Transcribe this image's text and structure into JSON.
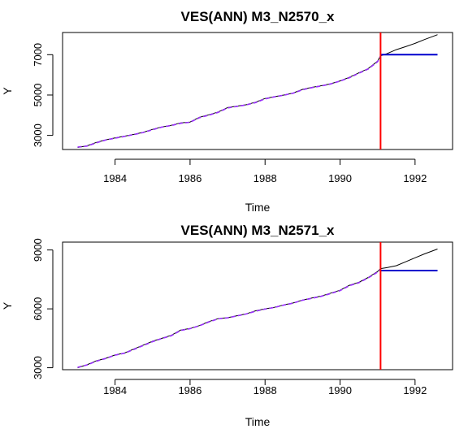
{
  "chart_data": [
    {
      "type": "line",
      "title": "VES(ANN) M3_N2570_x",
      "xlabel": "Time",
      "ylabel": "Y",
      "xlim": [
        1982.6,
        1993.0
      ],
      "ylim": [
        2300,
        8100
      ],
      "xticks": [
        1984,
        1986,
        1988,
        1990,
        1992
      ],
      "yticks": [
        3000,
        5000,
        7000
      ],
      "holdout_start": 1991.08,
      "colors": {
        "actual": "#000000",
        "fitted": "#9b30ff",
        "forecast": "#0000cd",
        "holdout_line": "#ff0000"
      },
      "series": [
        {
          "role": "actual",
          "x": [
            1983.0,
            1983.25,
            1983.5,
            1983.75,
            1984.0,
            1984.25,
            1984.5,
            1984.75,
            1985.0,
            1985.25,
            1985.5,
            1985.75,
            1986.0,
            1986.25,
            1986.5,
            1986.75,
            1987.0,
            1987.25,
            1987.5,
            1987.75,
            1988.0,
            1988.25,
            1988.5,
            1988.75,
            1989.0,
            1989.25,
            1989.5,
            1989.75,
            1990.0,
            1990.25,
            1990.5,
            1990.75,
            1991.0,
            1991.08,
            1991.25,
            1991.5,
            1991.75,
            1992.0,
            1992.25,
            1992.6
          ],
          "y": [
            2400,
            2480,
            2650,
            2780,
            2870,
            2960,
            3050,
            3150,
            3300,
            3420,
            3500,
            3620,
            3660,
            3900,
            4020,
            4160,
            4380,
            4450,
            4520,
            4650,
            4830,
            4920,
            5000,
            5100,
            5280,
            5380,
            5460,
            5560,
            5700,
            5880,
            6100,
            6310,
            6680,
            6950,
            7050,
            7250,
            7400,
            7560,
            7750,
            7990
          ]
        },
        {
          "role": "fitted",
          "x": [
            1983.0,
            1983.25,
            1983.5,
            1983.75,
            1984.0,
            1984.25,
            1984.5,
            1984.75,
            1985.0,
            1985.25,
            1985.5,
            1985.75,
            1986.0,
            1986.25,
            1986.5,
            1986.75,
            1987.0,
            1987.25,
            1987.5,
            1987.75,
            1988.0,
            1988.25,
            1988.5,
            1988.75,
            1989.0,
            1989.25,
            1989.5,
            1989.75,
            1990.0,
            1990.25,
            1990.5,
            1990.75,
            1991.0,
            1991.08
          ],
          "y": [
            2420,
            2470,
            2630,
            2770,
            2860,
            2950,
            3040,
            3140,
            3280,
            3410,
            3490,
            3600,
            3650,
            3880,
            4000,
            4140,
            4360,
            4440,
            4510,
            4630,
            4810,
            4910,
            4990,
            5090,
            5260,
            5370,
            5450,
            5550,
            5690,
            5860,
            6080,
            6290,
            6650,
            6930
          ]
        },
        {
          "role": "forecast",
          "x": [
            1991.08,
            1992.6
          ],
          "y": [
            7000,
            7000
          ]
        }
      ]
    },
    {
      "type": "line",
      "title": "VES(ANN) M3_N2571_x",
      "xlabel": "Time",
      "ylabel": "Y",
      "xlim": [
        1982.6,
        1993.0
      ],
      "ylim": [
        2900,
        9400
      ],
      "xticks": [
        1984,
        1986,
        1988,
        1990,
        1992
      ],
      "yticks": [
        3000,
        6000,
        9000
      ],
      "holdout_start": 1991.08,
      "colors": {
        "actual": "#000000",
        "fitted": "#9b30ff",
        "forecast": "#0000cd",
        "holdout_line": "#ff0000"
      },
      "series": [
        {
          "role": "actual",
          "x": [
            1983.0,
            1983.25,
            1983.5,
            1983.75,
            1984.0,
            1984.25,
            1984.5,
            1984.75,
            1985.0,
            1985.25,
            1985.5,
            1985.75,
            1986.0,
            1986.25,
            1986.5,
            1986.75,
            1987.0,
            1987.25,
            1987.5,
            1987.75,
            1988.0,
            1988.25,
            1988.5,
            1988.75,
            1989.0,
            1989.25,
            1989.5,
            1989.75,
            1990.0,
            1990.25,
            1990.5,
            1990.75,
            1991.0,
            1991.08,
            1991.25,
            1991.5,
            1991.75,
            1992.0,
            1992.25,
            1992.6
          ],
          "y": [
            3000,
            3150,
            3350,
            3480,
            3650,
            3750,
            3950,
            4150,
            4350,
            4500,
            4650,
            4920,
            5000,
            5150,
            5350,
            5500,
            5550,
            5650,
            5750,
            5900,
            6000,
            6080,
            6200,
            6300,
            6450,
            6550,
            6650,
            6800,
            6950,
            7200,
            7350,
            7600,
            7900,
            8050,
            8100,
            8200,
            8400,
            8600,
            8800,
            9050
          ]
        },
        {
          "role": "fitted",
          "x": [
            1983.0,
            1983.25,
            1983.5,
            1983.75,
            1984.0,
            1984.25,
            1984.5,
            1984.75,
            1985.0,
            1985.25,
            1985.5,
            1985.75,
            1986.0,
            1986.25,
            1986.5,
            1986.75,
            1987.0,
            1987.25,
            1987.5,
            1987.75,
            1988.0,
            1988.25,
            1988.5,
            1988.75,
            1989.0,
            1989.25,
            1989.5,
            1989.75,
            1990.0,
            1990.25,
            1990.5,
            1990.75,
            1991.0,
            1991.08
          ],
          "y": [
            3020,
            3140,
            3330,
            3470,
            3640,
            3740,
            3930,
            4130,
            4330,
            4490,
            4630,
            4900,
            4990,
            5140,
            5330,
            5490,
            5540,
            5640,
            5740,
            5880,
            5990,
            6070,
            6190,
            6290,
            6440,
            6540,
            6640,
            6780,
            6930,
            7180,
            7330,
            7580,
            7870,
            8000
          ]
        },
        {
          "role": "forecast",
          "x": [
            1991.08,
            1992.6
          ],
          "y": [
            7950,
            7950
          ]
        }
      ]
    }
  ]
}
